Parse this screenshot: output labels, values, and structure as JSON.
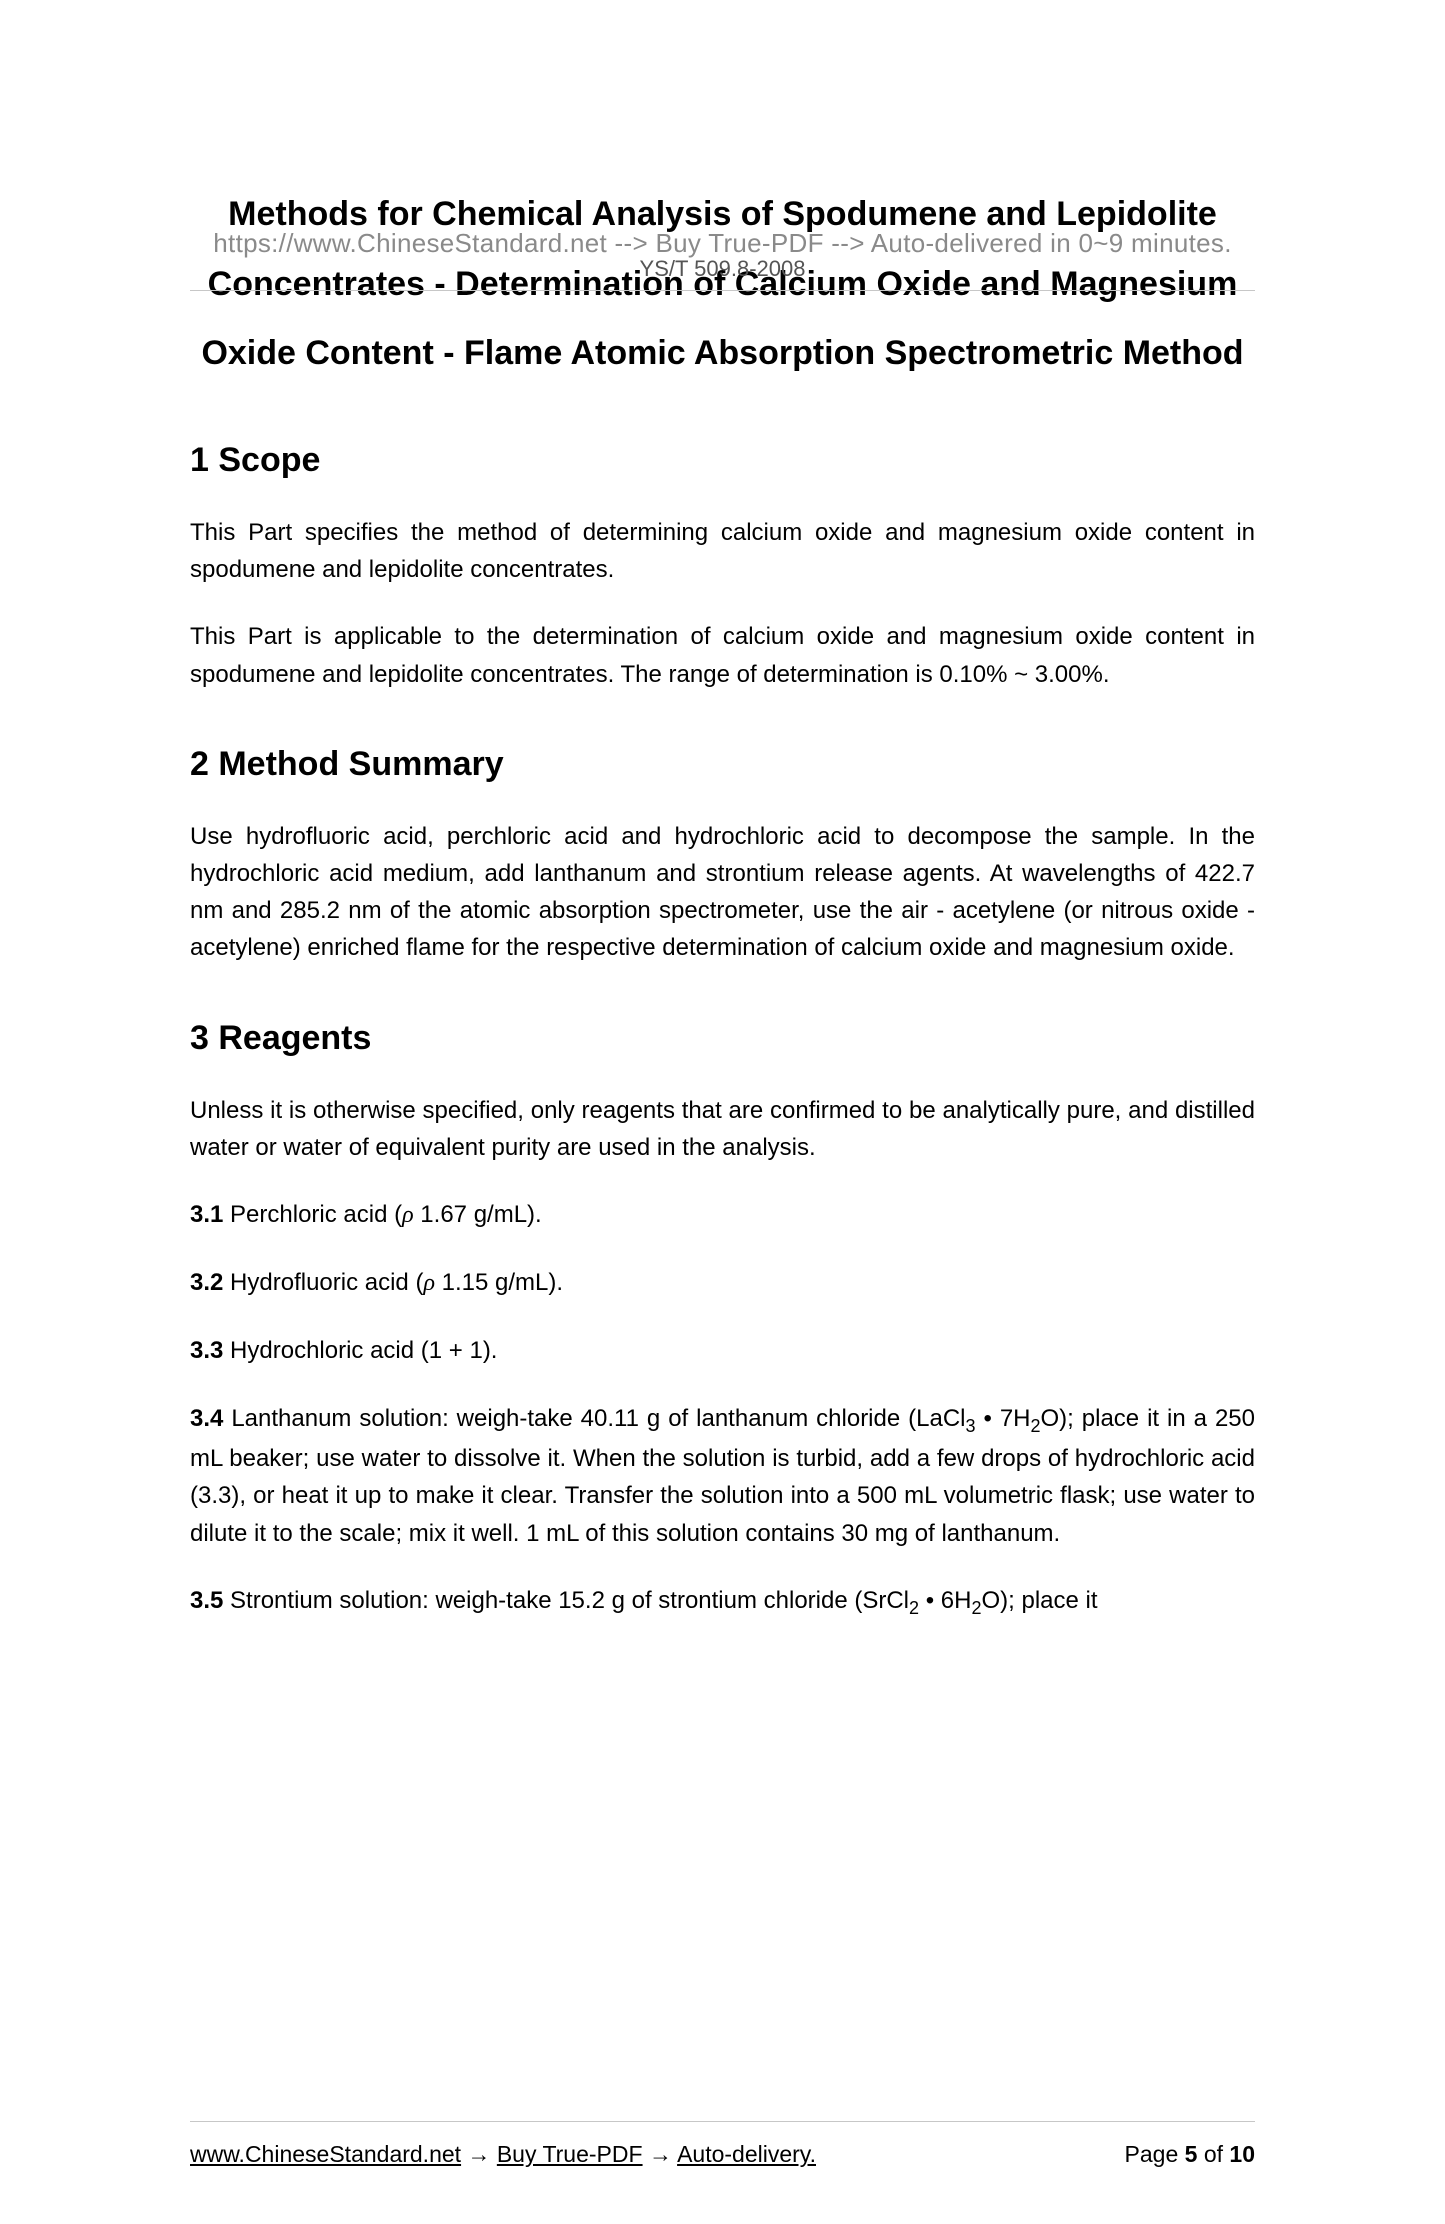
{
  "header": {
    "watermark": "https://www.ChineseStandard.net --> Buy True-PDF --> Auto-delivered in 0~9 minutes.",
    "doc_code": "YS/T 509.8-2008"
  },
  "title": "Methods for Chemical Analysis of Spodumene and Lepidolite Concentrates - Determination of Calcium Oxide and Magnesium Oxide Content - Flame Atomic Absorption Spectrometric Method",
  "sections": {
    "s1": {
      "heading": "1 Scope",
      "p1": "This Part specifies the method of determining calcium oxide and magnesium oxide content in spodumene and lepidolite concentrates.",
      "p2": "This Part is applicable to the determination of calcium oxide and magnesium oxide content in spodumene and lepidolite concentrates. The range of determination is 0.10% ~ 3.00%."
    },
    "s2": {
      "heading": "2 Method Summary",
      "p1": "Use hydrofluoric acid, perchloric acid and hydrochloric acid to decompose the sample. In the hydrochloric acid medium, add lanthanum and strontium release agents. At wavelengths of 422.7 nm and 285.2 nm of the atomic absorption spectrometer, use the air - acetylene (or nitrous oxide - acetylene) enriched flame for the respective determination of calcium oxide and magnesium oxide."
    },
    "s3": {
      "heading": "3 Reagents",
      "p_intro": "Unless it is otherwise specified, only reagents that are confirmed to be analytically pure, and distilled water or water of equivalent purity are used in the analysis.",
      "r31_num": "3.1",
      "r31_text_a": " Perchloric acid (",
      "r31_text_b": " 1.67 g/mL).",
      "r32_num": "3.2",
      "r32_text_a": " Hydrofluoric acid (",
      "r32_text_b": " 1.15 g/mL).",
      "r33_num": "3.3",
      "r33_text": " Hydrochloric acid (1 + 1).",
      "r34_num": "3.4",
      "r34_text_a": " Lanthanum solution: weigh-take 40.11 g of lanthanum chloride (LaCl",
      "r34_text_b": " • 7H",
      "r34_text_c": "O); place it in a 250 mL beaker; use water to dissolve it. When the solution is turbid, add a few drops of hydrochloric acid (3.3), or heat it up to make it clear. Transfer the solution into a 500 mL volumetric flask; use water to dilute it to the scale; mix it well. 1 mL of this solution contains 30 mg of lanthanum.",
      "r35_num": "3.5",
      "r35_text_a": " Strontium solution: weigh-take 15.2 g of strontium chloride (SrCl",
      "r35_text_b": " • 6H",
      "r35_text_c": "O); place it"
    }
  },
  "footer": {
    "link": "www.ChineseStandard.net",
    "arrow": " → ",
    "t1": "Buy True-PDF",
    "t2": "Auto-delivery.",
    "page_label_a": "Page ",
    "page_num": "5",
    "page_label_b": " of ",
    "page_total": "10"
  },
  "chars": {
    "rho": "ρ",
    "sub3": "3",
    "sub2": "2"
  }
}
